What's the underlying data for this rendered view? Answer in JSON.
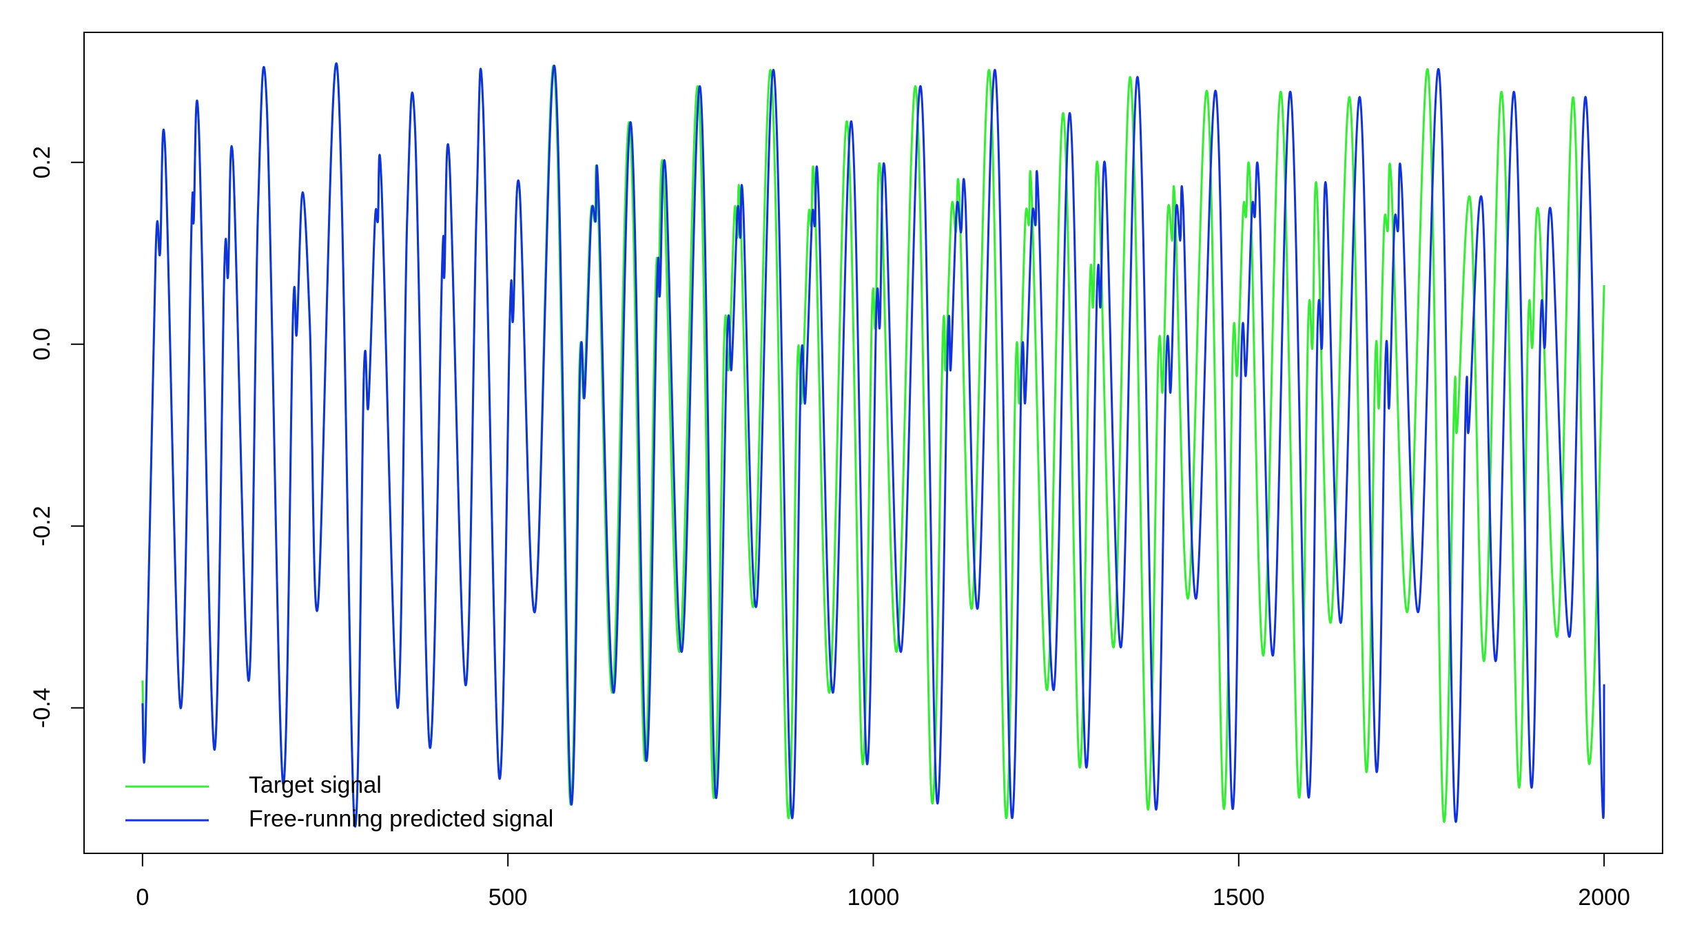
{
  "chart_data": {
    "type": "line",
    "xlim": [
      -80,
      2080
    ],
    "ylim": [
      -0.56,
      0.343
    ],
    "xticks": [
      0,
      500,
      1000,
      1500,
      2000
    ],
    "yticks": [
      -0.4,
      -0.2,
      {
        "value": 0,
        "label": "0.0"
      },
      0.2
    ],
    "legend": "bottom-left",
    "series": [
      {
        "name": "Target signal",
        "color": "#33ee33",
        "x": [
          0,
          4,
          18,
          24,
          31,
          52,
          67,
          70,
          77,
          98,
          112,
          117,
          124,
          145,
          158,
          170,
          192,
          206,
          211,
          219,
          229,
          240,
          266,
          290,
          303,
          309,
          318,
          322,
          327,
          349,
          362,
          373,
          393,
          410,
          413,
          420,
          442,
          457,
          466,
          488,
          503,
          507,
          516,
          537,
          563,
          585,
          598,
          604,
          613,
          619,
          623,
          643,
          666,
          687,
          702,
          706,
          713,
          735,
          760,
          781,
          796,
          802,
          810,
          814,
          818,
          836,
          860,
          883,
          896,
          902,
          911,
          915,
          920,
          940,
          964,
          985,
          998,
          1003,
          1010,
          1032,
          1058,
          1080,
          1095,
          1099,
          1107,
          1113,
          1118,
          1135,
          1159,
          1181,
          1195,
          1200,
          1208,
          1213,
          1217,
          1238,
          1260,
          1282,
          1296,
          1301,
          1308,
          1329,
          1352,
          1375,
          1390,
          1396,
          1403,
          1409,
          1413,
          1431,
          1457,
          1479,
          1492,
          1498,
          1506,
          1510,
          1516,
          1534,
          1558,
          1582,
          1595,
          1601,
          1607,
          1626,
          1652,
          1674,
          1687,
          1692,
          1699,
          1704,
          1709,
          1731,
          1759,
          1780,
          1795,
          1799,
          1817,
          1836,
          1860,
          1883,
          1896,
          1902,
          1911,
          1936,
          1958,
          1979,
          2000
        ],
        "values": [
          -0.37,
          -0.43,
          0.1,
          0.1,
          0.214,
          -0.4,
          0.13,
          0.135,
          0.24,
          -0.445,
          0.083,
          0.075,
          0.2,
          -0.37,
          0.146,
          0.264,
          -0.482,
          0.035,
          0.012,
          0.167,
          0.02,
          -0.288,
          0.307,
          -0.526,
          -0.03,
          -0.068,
          0.135,
          0.135,
          0.176,
          -0.4,
          0.135,
          0.236,
          -0.443,
          0.087,
          0.075,
          0.202,
          -0.375,
          0.146,
          0.262,
          -0.476,
          0.04,
          0.027,
          0.17,
          -0.294,
          0.305,
          -0.502,
          -0.02,
          -0.056,
          0.14,
          0.135,
          0.164,
          -0.383,
          0.244,
          -0.457,
          0.063,
          0.055,
          0.188,
          -0.338,
          0.283,
          -0.496,
          0.007,
          -0.026,
          0.146,
          0.117,
          0.152,
          -0.288,
          0.3,
          -0.517,
          -0.024,
          -0.062,
          0.136,
          0.13,
          0.164,
          -0.383,
          0.245,
          -0.46,
          0.033,
          0.021,
          0.188,
          -0.338,
          0.283,
          -0.502,
          0.006,
          -0.026,
          0.15,
          0.123,
          0.158,
          -0.29,
          0.3,
          -0.517,
          -0.02,
          -0.062,
          0.137,
          0.131,
          0.158,
          -0.38,
          0.254,
          -0.464,
          0.057,
          0.043,
          0.188,
          -0.333,
          0.293,
          -0.508,
          -0.014,
          -0.05,
          0.146,
          0.114,
          0.152,
          -0.279,
          0.277,
          -0.508,
          -0.002,
          -0.032,
          0.146,
          0.14,
          0.17,
          -0.342,
          0.277,
          -0.496,
          0.021,
          -0.002,
          0.17,
          -0.306,
          0.271,
          -0.467,
          -0.014,
          -0.068,
          0.131,
          0.125,
          0.176,
          -0.294,
          0.301,
          -0.52,
          -0.056,
          -0.092,
          0.158,
          -0.348,
          0.277,
          -0.485,
          0.021,
          -0.002,
          0.14,
          -0.321,
          0.271,
          -0.46,
          0.065
        ]
      },
      {
        "name": "Free-running predicted signal",
        "color": "#1133dd",
        "x": [
          0,
          4,
          18,
          24,
          31,
          52,
          67,
          70,
          77,
          98,
          112,
          117,
          124,
          145,
          158,
          170,
          192,
          206,
          211,
          219,
          229,
          240,
          266,
          290,
          303,
          309,
          318,
          322,
          327,
          349,
          362,
          373,
          393,
          410,
          413,
          420,
          442,
          457,
          466,
          488,
          503,
          507,
          516,
          537,
          564,
          586,
          599,
          605,
          614,
          620,
          624,
          645,
          668,
          689,
          704,
          708,
          716,
          738,
          763,
          784,
          800,
          806,
          814,
          818,
          822,
          840,
          864,
          888,
          901,
          907,
          916,
          920,
          925,
          945,
          970,
          991,
          1004,
          1009,
          1016,
          1038,
          1065,
          1087,
          1102,
          1106,
          1114,
          1120,
          1126,
          1143,
          1167,
          1189,
          1203,
          1208,
          1217,
          1222,
          1226,
          1247,
          1269,
          1291,
          1306,
          1311,
          1318,
          1339,
          1362,
          1386,
          1401,
          1407,
          1414,
          1420,
          1424,
          1442,
          1469,
          1491,
          1504,
          1510,
          1518,
          1522,
          1528,
          1547,
          1571,
          1595,
          1608,
          1614,
          1620,
          1640,
          1666,
          1688,
          1701,
          1706,
          1713,
          1718,
          1723,
          1746,
          1774,
          1796,
          1811,
          1815,
          1833,
          1852,
          1877,
          1900,
          1913,
          1919,
          1928,
          1953,
          1975,
          1997,
          2000
        ],
        "values": [
          -0.395,
          -0.43,
          0.1,
          0.1,
          0.214,
          -0.4,
          0.13,
          0.135,
          0.24,
          -0.445,
          0.083,
          0.075,
          0.2,
          -0.37,
          0.146,
          0.264,
          -0.482,
          0.035,
          0.012,
          0.167,
          0.02,
          -0.288,
          0.307,
          -0.526,
          -0.03,
          -0.068,
          0.135,
          0.135,
          0.176,
          -0.4,
          0.135,
          0.236,
          -0.443,
          0.087,
          0.075,
          0.202,
          -0.375,
          0.146,
          0.262,
          -0.476,
          0.04,
          0.027,
          0.17,
          -0.294,
          0.305,
          -0.502,
          -0.02,
          -0.056,
          0.14,
          0.135,
          0.164,
          -0.383,
          0.244,
          -0.457,
          0.063,
          0.055,
          0.188,
          -0.338,
          0.283,
          -0.496,
          0.007,
          -0.026,
          0.146,
          0.117,
          0.152,
          -0.288,
          0.3,
          -0.517,
          -0.024,
          -0.062,
          0.136,
          0.13,
          0.164,
          -0.383,
          0.245,
          -0.46,
          0.033,
          0.021,
          0.188,
          -0.338,
          0.283,
          -0.502,
          0.006,
          -0.026,
          0.15,
          0.123,
          0.158,
          -0.29,
          0.3,
          -0.517,
          -0.02,
          -0.062,
          0.137,
          0.131,
          0.158,
          -0.38,
          0.254,
          -0.464,
          0.057,
          0.043,
          0.188,
          -0.333,
          0.293,
          -0.508,
          -0.014,
          -0.05,
          0.146,
          0.114,
          0.152,
          -0.279,
          0.277,
          -0.508,
          -0.002,
          -0.032,
          0.146,
          0.14,
          0.17,
          -0.342,
          0.277,
          -0.496,
          0.021,
          -0.002,
          0.17,
          -0.306,
          0.271,
          -0.467,
          -0.014,
          -0.068,
          0.131,
          0.125,
          0.176,
          -0.294,
          0.301,
          -0.52,
          -0.056,
          -0.092,
          0.158,
          -0.348,
          0.277,
          -0.485,
          0.021,
          -0.002,
          0.14,
          -0.321,
          0.271,
          -0.49,
          -0.374
        ]
      }
    ]
  }
}
